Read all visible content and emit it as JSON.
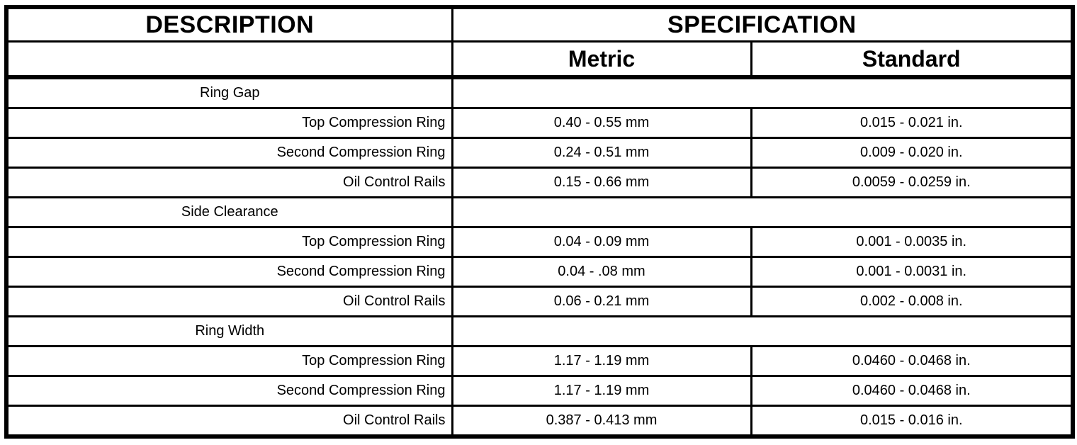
{
  "doc": {
    "header": {
      "description": "DESCRIPTION",
      "specification": "SPECIFICATION",
      "metric": "Metric",
      "standard": "Standard"
    },
    "sections": [
      {
        "title": "Ring Gap",
        "rows": [
          {
            "label": "Top Compression Ring",
            "metric": "0.40 - 0.55 mm",
            "standard": "0.015 - 0.021 in."
          },
          {
            "label": "Second Compression Ring",
            "metric": "0.24 - 0.51 mm",
            "standard": "0.009 - 0.020 in."
          },
          {
            "label": "Oil Control Rails",
            "metric": "0.15 - 0.66 mm",
            "standard": "0.0059 - 0.0259 in."
          }
        ]
      },
      {
        "title": "Side Clearance",
        "rows": [
          {
            "label": "Top Compression Ring",
            "metric": "0.04 - 0.09 mm",
            "standard": "0.001 - 0.0035 in."
          },
          {
            "label": "Second Compression Ring",
            "metric": "0.04 - .08 mm",
            "standard": "0.001 - 0.0031 in."
          },
          {
            "label": "Oil Control Rails",
            "metric": "0.06 - 0.21 mm",
            "standard": "0.002 - 0.008 in."
          }
        ]
      },
      {
        "title": "Ring Width",
        "rows": [
          {
            "label": "Top Compression Ring",
            "metric": "1.17 - 1.19 mm",
            "standard": "0.0460 - 0.0468 in."
          },
          {
            "label": "Second Compression Ring",
            "metric": "1.17 - 1.19 mm",
            "standard": "0.0460 - 0.0468 in."
          },
          {
            "label": "Oil Control Rails",
            "metric": "0.387 - 0.413 mm",
            "standard": "0.015 - 0.016 in."
          }
        ]
      }
    ],
    "colors": {
      "ink": "#000000",
      "paper": "#ffffff"
    }
  }
}
